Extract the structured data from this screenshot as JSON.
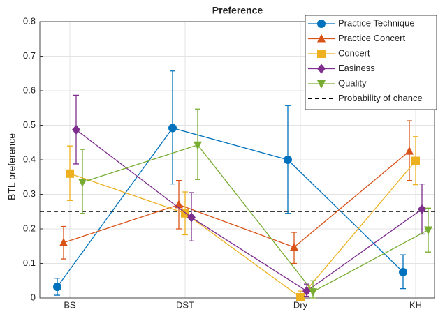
{
  "chart_data": {
    "type": "errorline",
    "title": "Preference",
    "y_label": "BTL preference",
    "categories": [
      "BS",
      "DST",
      "Dry",
      "KH"
    ],
    "ylim": [
      0,
      0.8
    ],
    "yticks": [
      0,
      0.1,
      0.2,
      0.3,
      0.4,
      0.5,
      0.6,
      0.7,
      0.8
    ],
    "grid": true,
    "legend": "top-right",
    "series": [
      {
        "name": "Practice Technique",
        "color": "#0072bd",
        "marker": "circle",
        "values": [
          0.032,
          0.492,
          0.4,
          0.075
        ],
        "lower": [
          0.008,
          0.33,
          0.245,
          0.027
        ],
        "upper": [
          0.057,
          0.657,
          0.557,
          0.125
        ]
      },
      {
        "name": "Practice Concert",
        "color": "#d95319",
        "marker": "triangle-up",
        "values": [
          0.16,
          0.27,
          0.147,
          0.425
        ],
        "lower": [
          0.113,
          0.2,
          0.1,
          0.34
        ],
        "upper": [
          0.207,
          0.34,
          0.19,
          0.513
        ]
      },
      {
        "name": "Concert",
        "color": "#edb120",
        "marker": "square",
        "values": [
          0.36,
          0.245,
          0.002,
          0.397
        ],
        "lower": [
          0.282,
          0.183,
          0,
          0.328
        ],
        "upper": [
          0.44,
          0.307,
          0.02,
          0.467
        ]
      },
      {
        "name": "Easiness",
        "color": "#7e2f8e",
        "marker": "diamond",
        "values": [
          0.487,
          0.233,
          0.02,
          0.257
        ],
        "lower": [
          0.388,
          0.165,
          0.005,
          0.185
        ],
        "upper": [
          0.587,
          0.305,
          0.04,
          0.33
        ]
      },
      {
        "name": "Quality",
        "color": "#77ac30",
        "marker": "triangle-down",
        "values": [
          0.335,
          0.443,
          0.018,
          0.197
        ],
        "lower": [
          0.245,
          0.343,
          0,
          0.133
        ],
        "upper": [
          0.43,
          0.547,
          0.05,
          0.26
        ]
      }
    ],
    "reference_line": {
      "name": "Probability of chance",
      "value": 0.25,
      "color": "#000000"
    }
  }
}
